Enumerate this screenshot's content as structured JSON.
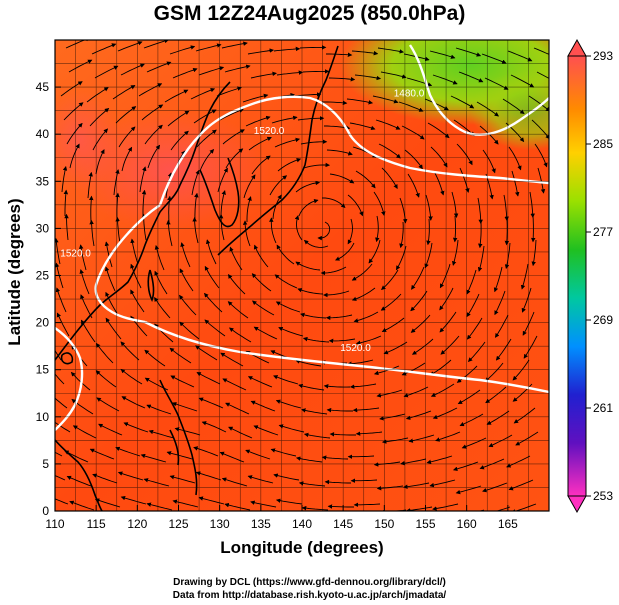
{
  "title": "GSM 12Z24Aug2025 (850.0hPa)",
  "chart_data": {
    "type": "map",
    "xlabel": "Longitude (degrees)",
    "ylabel": "Latitude  (degrees)",
    "x_ticks": [
      110,
      115,
      120,
      125,
      130,
      135,
      140,
      145,
      150,
      155,
      160,
      165
    ],
    "y_ticks": [
      0,
      5,
      10,
      15,
      20,
      25,
      30,
      35,
      40,
      45
    ],
    "xlim": [
      110,
      170
    ],
    "ylim": [
      0,
      50
    ],
    "colorbar": {
      "min": 253,
      "max": 293,
      "ticks": [
        293,
        285,
        277,
        269,
        261,
        253
      ]
    },
    "contours": [
      {
        "label": "1520.0",
        "lon": 136,
        "lat": 40
      },
      {
        "label": "1520.0",
        "lon": 112.5,
        "lat": 27
      },
      {
        "label": "1520.0",
        "lon": 146.5,
        "lat": 17
      },
      {
        "label": "1480.0",
        "lon": 153,
        "lat": 44
      }
    ]
  },
  "credits": {
    "line1": "Drawing by DCL (https://www.gfd-dennou.org/library/dcl/)",
    "line2": "Data from http://database.rish.kyoto-u.ac.jp/arch/jmadata/"
  }
}
